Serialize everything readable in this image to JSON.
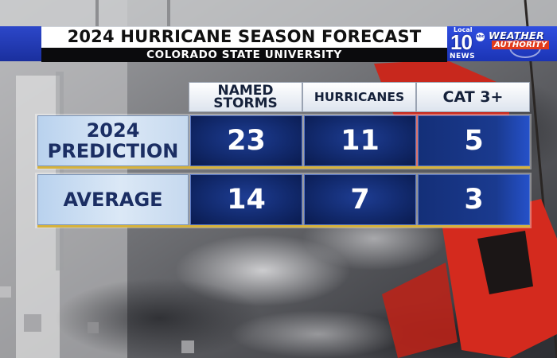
{
  "header": {
    "title": "2024 HURRICANE SEASON FORECAST",
    "subtitle": "COLORADO STATE UNIVERSITY"
  },
  "logo": {
    "local": "Local",
    "number": "10",
    "network": "abc",
    "news": "NEWS",
    "weather": "WEATHER",
    "authority": "AUTHORITY"
  },
  "table": {
    "columns": [
      {
        "line1": "NAMED",
        "line2": "STORMS"
      },
      {
        "line1": "HURRICANES",
        "line2": ""
      },
      {
        "line1": "CAT 3+",
        "line2": ""
      }
    ],
    "rows": [
      {
        "label_line1": "2024",
        "label_line2": "PREDICTION",
        "values": [
          "23",
          "11",
          "5"
        ]
      },
      {
        "label_line1": "AVERAGE",
        "label_line2": "",
        "values": [
          "14",
          "7",
          "3"
        ]
      }
    ]
  },
  "colors": {
    "header_blue": "#1f3bc4",
    "cell_navy": "#122a6e",
    "label_light_blue": "#c6d9ef",
    "gold_rule": "#d6b23c",
    "flag_red": "#d42a1e"
  },
  "icons": [
    "hurricane-warning-flag-icon",
    "station-logo-icon"
  ]
}
